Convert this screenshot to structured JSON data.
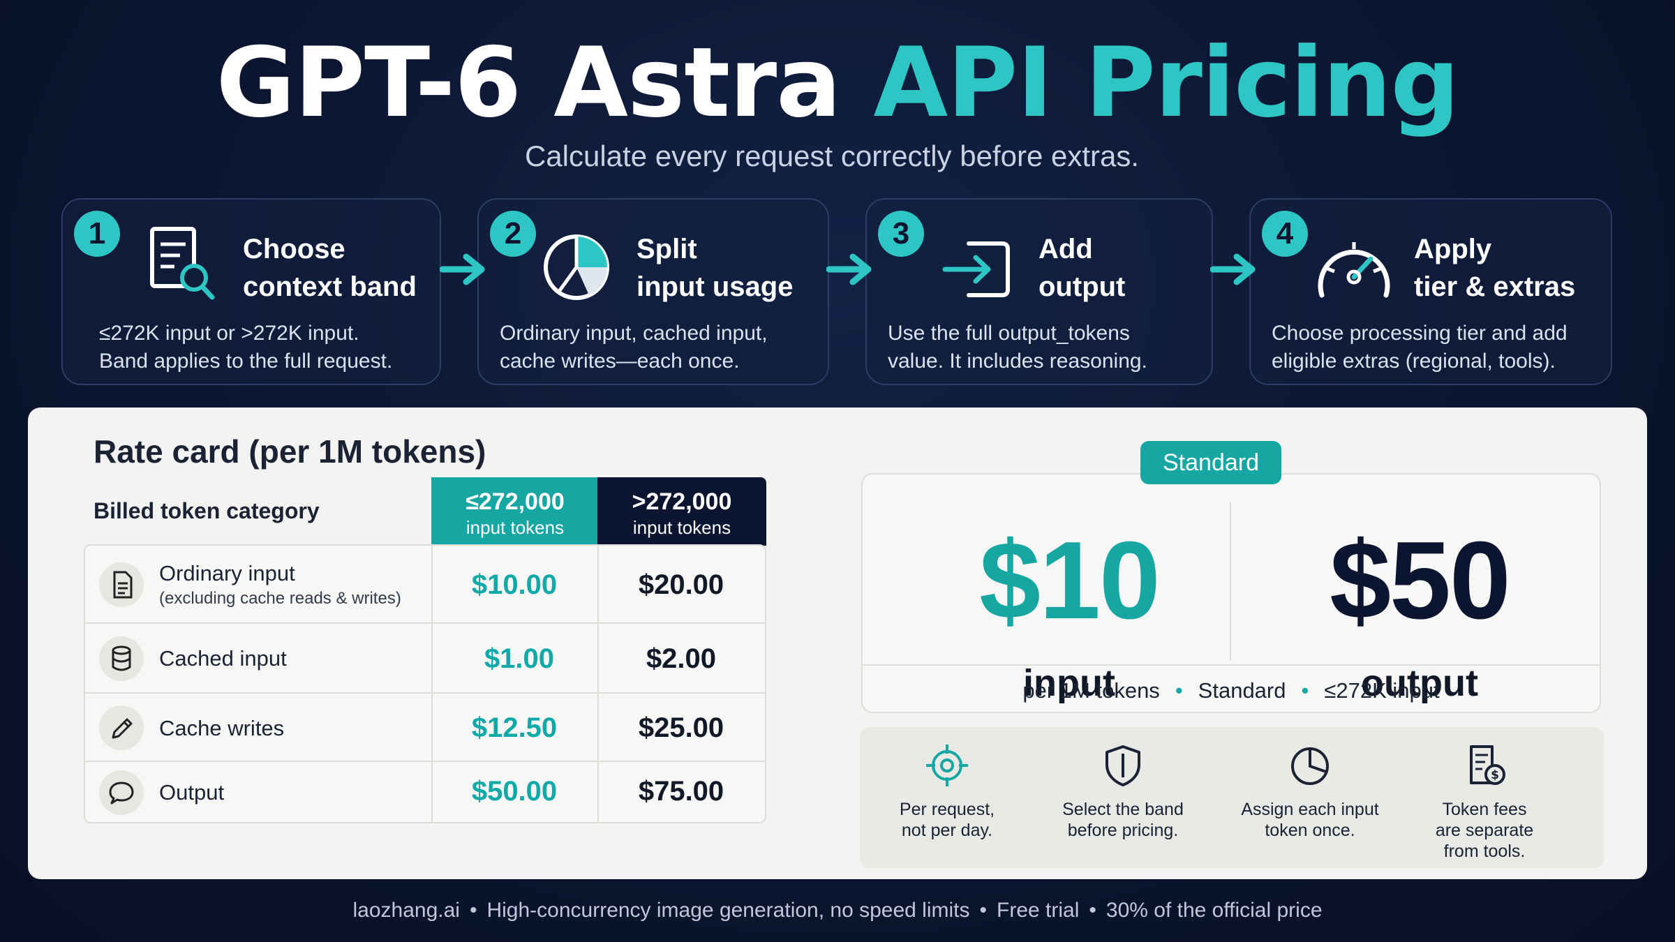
{
  "title": {
    "part1": "GPT-6 Astra ",
    "part2": "API Pricing"
  },
  "subtitle": "Calculate every request correctly before extras.",
  "steps": [
    {
      "number": "1",
      "title_line1": "Choose",
      "title_line2": "context band",
      "desc_line1": "≤272K input or >272K input.",
      "desc_line2": "Band applies to the full request."
    },
    {
      "number": "2",
      "title_line1": "Split",
      "title_line2": "input usage",
      "desc_line1": "Ordinary input, cached input,",
      "desc_line2": "cache writes—each once."
    },
    {
      "number": "3",
      "title_line1": "Add",
      "title_line2": "output",
      "desc_line1": "Use the full output_tokens",
      "desc_line2": "value. It includes reasoning."
    },
    {
      "number": "4",
      "title_line1": "Apply",
      "title_line2": "tier & extras",
      "desc_line1": "Choose processing tier and add",
      "desc_line2": "eligible extras (regional, tools)."
    }
  ],
  "rate_card": {
    "title": "Rate card (per 1M tokens)",
    "category_header": "Billed token category",
    "col_standard": {
      "big": "≤272,000",
      "small": "input tokens"
    },
    "col_long": {
      "big": ">272,000",
      "small": "input tokens"
    },
    "rows": [
      {
        "icon": "document-icon",
        "label": "Ordinary input",
        "sub": "(excluding cache reads & writes)",
        "std": "$10.00",
        "long": "$20.00"
      },
      {
        "icon": "database-icon",
        "label": "Cached input",
        "sub": "",
        "std": "$1.00",
        "long": "$2.00"
      },
      {
        "icon": "pencil-icon",
        "label": "Cache writes",
        "sub": "",
        "std": "$12.50",
        "long": "$25.00"
      },
      {
        "icon": "chat-bubble-icon",
        "label": "Output",
        "sub": "",
        "std": "$50.00",
        "long": "$75.00"
      }
    ]
  },
  "standard_card": {
    "badge": "Standard",
    "input_price": "$10",
    "input_label": "input",
    "output_price": "$50",
    "output_label": "output",
    "footer": [
      "per 1M tokens",
      "Standard",
      "≤272K input"
    ]
  },
  "notes": [
    {
      "icon": "target-icon",
      "line1": "Per request,",
      "line2": "not per day.",
      "line3": ""
    },
    {
      "icon": "shield-icon",
      "line1": "Select the band",
      "line2": "before pricing.",
      "line3": ""
    },
    {
      "icon": "pie-chart-icon",
      "line1": "Assign each input",
      "line2": "token once.",
      "line3": ""
    },
    {
      "icon": "receipt-dollar-icon",
      "line1": "Token fees",
      "line2": "are separate",
      "line3": "from tools."
    }
  ],
  "footer": [
    "laozhang.ai",
    "High-concurrency image generation, no speed limits",
    "Free trial",
    "30% of the official price"
  ],
  "colors": {
    "accent": "#2ec6c4",
    "navy": "#0b1530",
    "teal_price": "#0fa9a8"
  }
}
